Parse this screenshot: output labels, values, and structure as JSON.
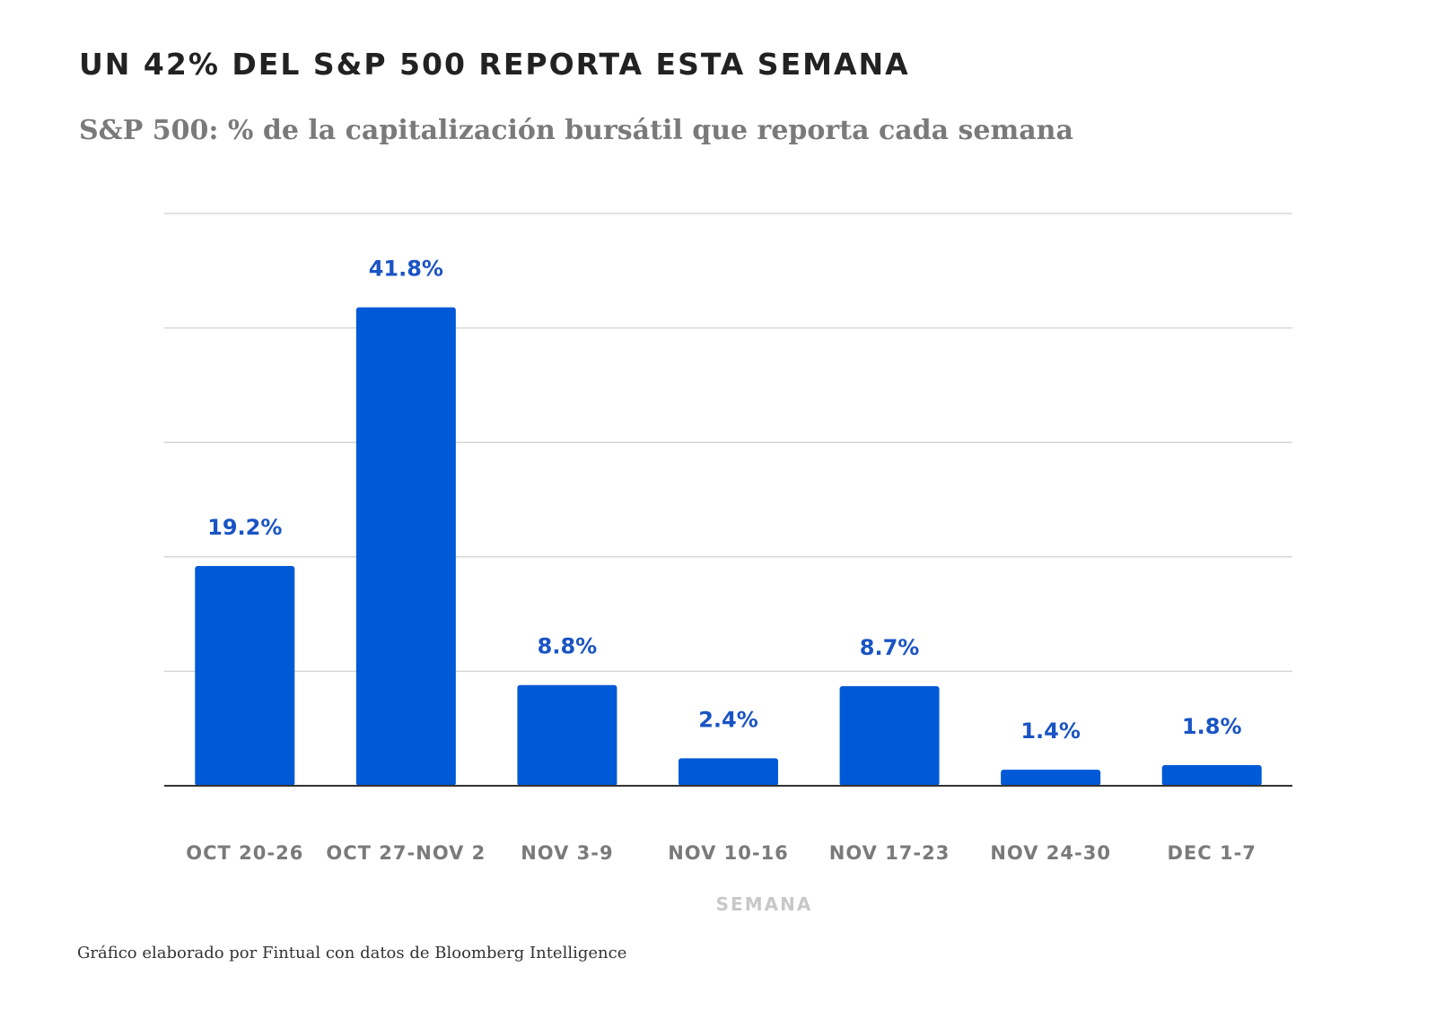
{
  "header": {
    "title": "UN 42% DEL S&P 500 REPORTA ESTA SEMANA",
    "subtitle": "S&P 500: % de la capitalización bursátil que reporta cada semana"
  },
  "footer": {
    "source": "Gráfico elaborado por Fintual con datos de Bloomberg Intelligence"
  },
  "chart_data": {
    "type": "bar",
    "title": "UN 42% DEL S&P 500 REPORTA ESTA SEMANA",
    "subtitle": "S&P 500: % de la capitalización bursátil que reporta cada semana",
    "xlabel": "SEMANA",
    "ylabel": "",
    "categories": [
      "OCT 20-26",
      "OCT 27-NOV 2",
      "NOV 3-9",
      "NOV 10-16",
      "NOV 17-23",
      "NOV 24-30",
      "DEC 1-7"
    ],
    "values": [
      19.2,
      41.8,
      8.8,
      2.4,
      8.7,
      1.4,
      1.8
    ],
    "data_labels": [
      "19.2%",
      "41.8%",
      "8.8%",
      "2.4%",
      "8.7%",
      "1.4%",
      "1.8%"
    ],
    "ylim": [
      0,
      50
    ],
    "grid": true,
    "y_tick_labels_shown": false,
    "colors": {
      "bar": "#0059d6",
      "data_label": "#1a54c4",
      "tick_label": "#7a7a7a",
      "axis_title": "#c8c8c8",
      "grid": "#d6d6d6",
      "axis": "#333333"
    }
  }
}
